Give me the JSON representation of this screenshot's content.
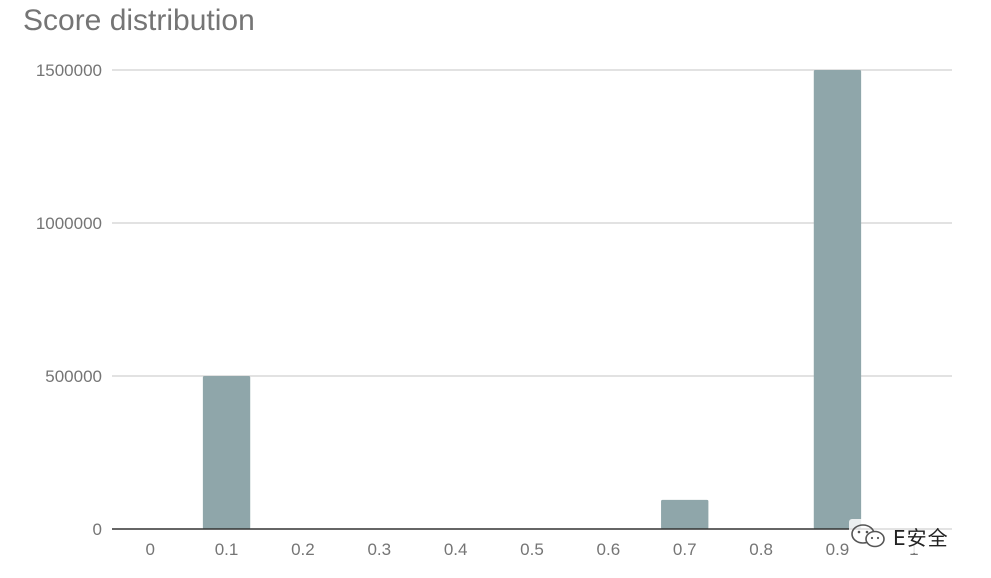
{
  "chart_data": {
    "type": "bar",
    "title": "Score distribution",
    "xlabel": "",
    "ylabel": "",
    "categories": [
      "0",
      "0.1",
      "0.2",
      "0.3",
      "0.4",
      "0.5",
      "0.6",
      "0.7",
      "0.8",
      "0.9",
      "1"
    ],
    "values": [
      0,
      500000,
      0,
      0,
      0,
      0,
      0,
      95000,
      0,
      1500000,
      0
    ],
    "ylim": [
      0,
      1500000
    ],
    "yticks": [
      0,
      500000,
      1000000,
      1500000
    ],
    "grid": true,
    "legend": "none",
    "colors": {
      "bar": "#8fa6aa",
      "grid": "#d9d9d9",
      "axis": "#333333",
      "text": "#757575"
    }
  },
  "watermark": {
    "text": "E安全",
    "icon": "wechat-icon"
  }
}
